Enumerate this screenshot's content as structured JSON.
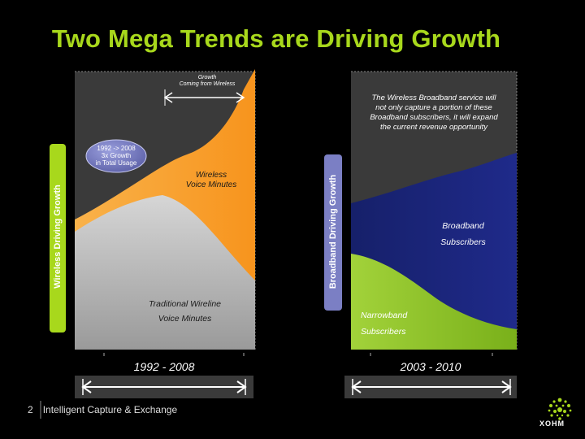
{
  "title": "Two Mega Trends are Driving Growth",
  "left_panel": {
    "growth_annotation": [
      "Growth",
      "Coming from Wireless"
    ],
    "vertical_label": "Wireless Driving Growth",
    "bubble_text": [
      "1992 -> 2008",
      "3x Growth",
      "in Total Usage"
    ],
    "wireless_label": [
      "Wireless",
      "Voice Minutes"
    ],
    "wireline_label": [
      "Traditional Wireline",
      "Voice Minutes"
    ],
    "period": "1992 - 2008"
  },
  "right_panel": {
    "note": [
      "The Wireless Broadband service will",
      "not only capture a portion of these",
      "Broadband subscribers, it will expand",
      "the current revenue opportunity"
    ],
    "vertical_label": "Broadband Driving Growth",
    "broadband_label": [
      "Broadband",
      "Subscribers"
    ],
    "narrowband_label": [
      "Narrowband",
      "Subscribers"
    ],
    "period": "2003 - 2010"
  },
  "footer": {
    "page_number": "2",
    "text": "Intelligent Capture & Exchange"
  },
  "logo": {
    "name": "XOHM"
  },
  "colors": {
    "title": "#a8d81c",
    "wireless": "#f7941d",
    "wireline": "#c8c8c8",
    "broadband": "#1a2377",
    "narrowband": "#8dc21f",
    "panel": "#3a3a3a",
    "pill": "#a8d81c",
    "bubble": "#7b7fc4"
  }
}
